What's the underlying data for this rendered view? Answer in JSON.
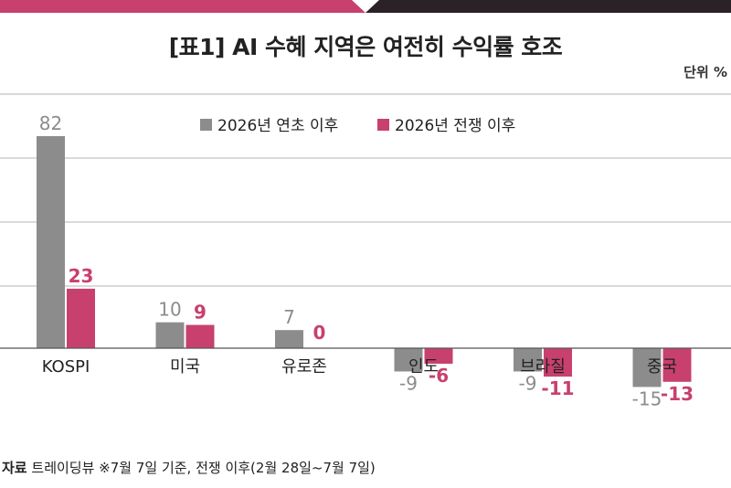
{
  "title": "[표1] AI 수혜 지역은 여전히 수익률 호조",
  "unit_label": "단위 %",
  "source": {
    "label": "자료",
    "text": "트레이딩뷰  ※7월 7일 기준, 전쟁 이후(2월 28일~7월 7일)"
  },
  "colors": {
    "series_gray": "#8c8c8c",
    "series_pink": "#c8406e",
    "topbar_pink": "#c8406e",
    "topbar_dark": "#2a2226",
    "grid": "#b3b3b3"
  },
  "chart_data": {
    "type": "bar",
    "categories": [
      "KOSPI",
      "미국",
      "유로존",
      "인도",
      "브라질",
      "중국"
    ],
    "series": [
      {
        "name": "2026년 연초 이후",
        "values": [
          82,
          10,
          7,
          -9,
          -9,
          -15
        ]
      },
      {
        "name": "2026년 전쟁 이후",
        "values": [
          23,
          9,
          0,
          -6,
          -11,
          -13
        ]
      }
    ],
    "title": "[표1] AI 수혜 지역은 여전히 수익률 호조",
    "ylabel": "단위 %",
    "grid": true,
    "legend": "top-center"
  }
}
